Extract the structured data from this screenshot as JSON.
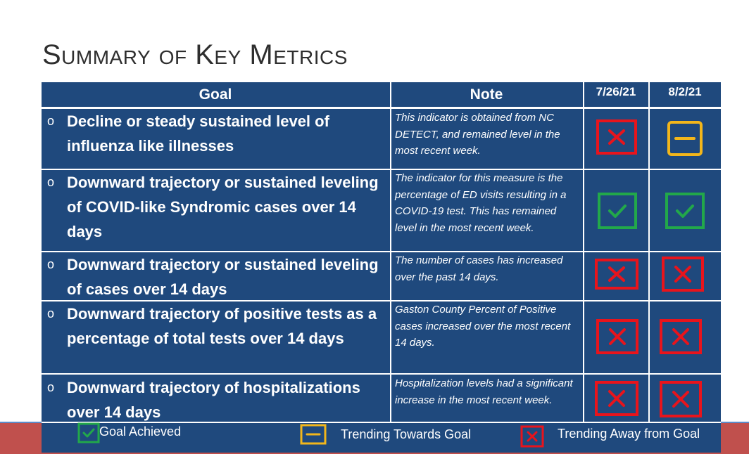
{
  "page": {
    "title": "Summary of Key Metrics"
  },
  "table": {
    "headers": {
      "goal": "Goal",
      "note": "Note",
      "date1": "7/26/21",
      "date2": "8/2/21"
    },
    "rows": [
      {
        "goal": "Decline or steady sustained level of influenza like illnesses",
        "note": "This indicator is obtained from NC DETECT, and remained level in the most recent week.",
        "status1": "away",
        "status2": "trending"
      },
      {
        "goal": "Downward trajectory or sustained leveling of COVID-like Syndromic cases over 14 days",
        "note": "The indicator for this measure is the percentage of ED visits resulting in a COVID-19 test. This has remained level in the most recent week.",
        "status1": "achieved",
        "status2": "achieved"
      },
      {
        "goal": "Downward trajectory or sustained leveling of  cases over 14 days",
        "note": "The number of cases has increased over the past 14 days.",
        "status1": "away",
        "status2": "away"
      },
      {
        "goal": "Downward trajectory  of positive tests as a percentage of total tests over 14 days",
        "note": "Gaston County Percent of Positive cases increased over the most recent 14 days.",
        "status1": "away",
        "status2": "away"
      },
      {
        "goal": "Downward trajectory  of hospitalizations over 14 days",
        "note": "Hospitalization levels had a significant increase in the most recent week.",
        "status1": "away",
        "status2": "away"
      }
    ],
    "bullet_glyph": "o"
  },
  "legend": {
    "achieved": "Goal Achieved",
    "trending": "Trending Towards Goal",
    "away": "Trending Away from Goal"
  },
  "colors": {
    "table_bg": "#1f497d",
    "achieved": "#22a84a",
    "trending": "#f2b61b",
    "away": "#e8141c"
  }
}
